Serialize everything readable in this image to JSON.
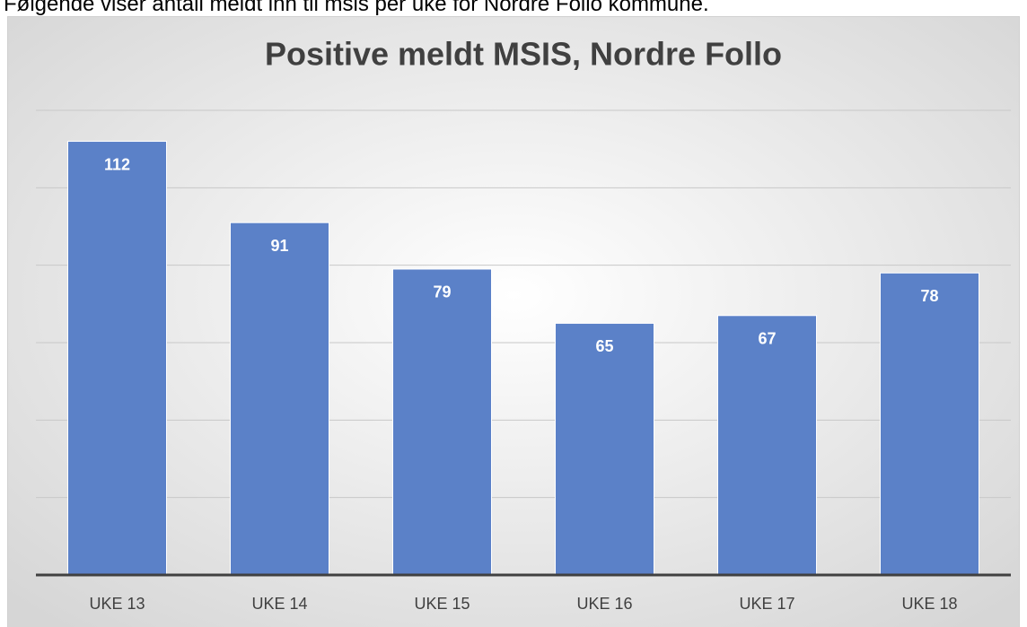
{
  "caption": "Følgende viser antall meldt inn til msis per uke for Nordre Follo kommune.",
  "chart_data": {
    "type": "bar",
    "title": "Positive meldt MSIS, Nordre Follo",
    "categories": [
      "UKE 13",
      "UKE 14",
      "UKE 15",
      "UKE 16",
      "UKE 17",
      "UKE 18"
    ],
    "values": [
      112,
      91,
      79,
      65,
      67,
      78
    ],
    "color": "#5b81c8",
    "ylim": [
      0,
      120
    ],
    "yticks": [
      0,
      20,
      40,
      60,
      80,
      100,
      120
    ],
    "grid": true
  }
}
